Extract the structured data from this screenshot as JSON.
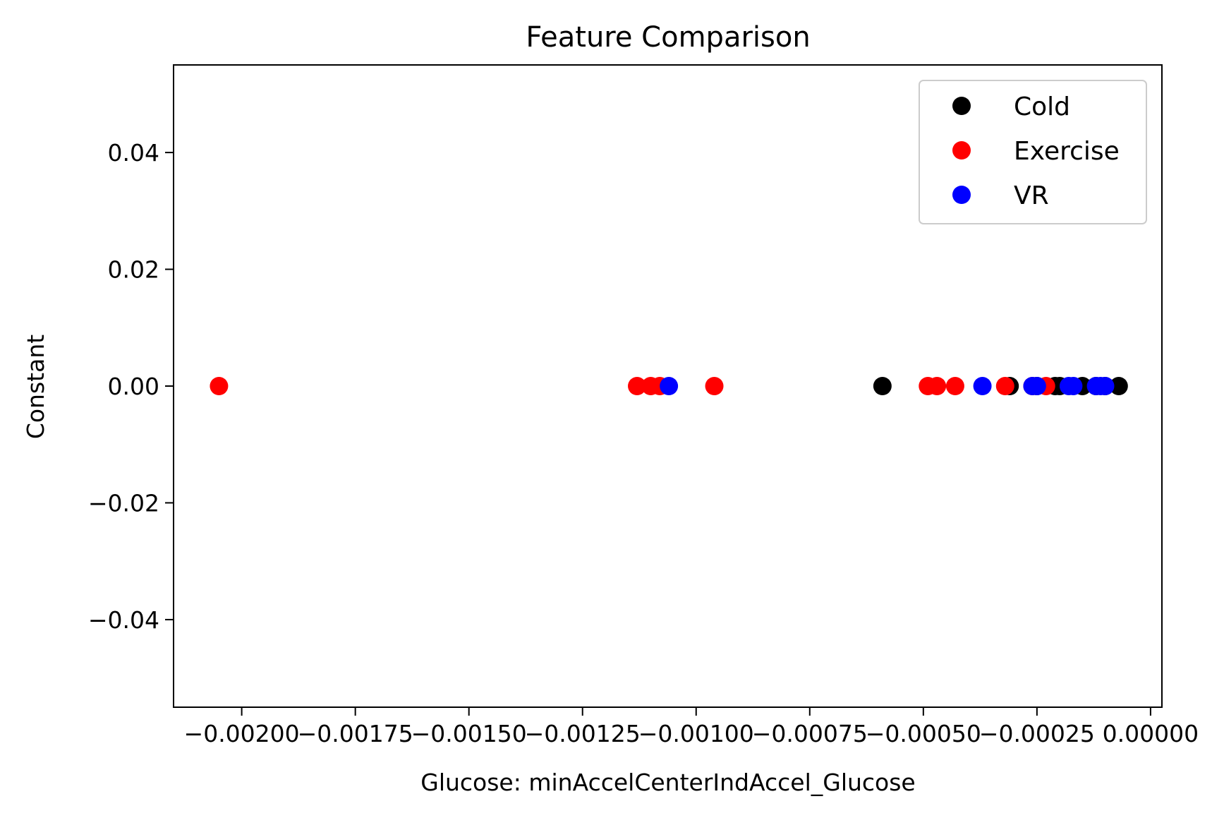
{
  "chart_data": {
    "type": "scatter",
    "title": "Feature Comparison",
    "xlabel": "Glucose: minAccelCenterIndAccel_Glucose",
    "ylabel": "Constant",
    "xlim": [
      -0.00215,
      2.5e-05
    ],
    "ylim": [
      -0.055,
      0.055
    ],
    "xticks": [
      -0.002,
      -0.00175,
      -0.0015,
      -0.00125,
      -0.001,
      -0.00075,
      -0.0005,
      -0.00025,
      0.0
    ],
    "xtick_labels": [
      "−0.00200",
      "−0.00175",
      "−0.00150",
      "−0.00125",
      "−0.00100",
      "−0.00075",
      "−0.00050",
      "−0.00025",
      "0.00000"
    ],
    "yticks": [
      0.04,
      0.02,
      0.0,
      -0.02,
      -0.04
    ],
    "ytick_labels": [
      "0.04",
      "0.02",
      "0.00",
      "−0.02",
      "−0.04"
    ],
    "grid": false,
    "legend_position": "top-right",
    "series": [
      {
        "name": "Cold",
        "color": "#000000",
        "x": [
          -0.00059,
          -0.00031,
          -0.00025,
          -0.00021,
          -0.0002,
          -0.00015,
          -0.00012,
          -0.0001,
          -7e-05
        ],
        "y": [
          0,
          0,
          0,
          0,
          0,
          0,
          0,
          0,
          0
        ]
      },
      {
        "name": "Exercise",
        "color": "#ff0000",
        "x": [
          -0.00205,
          -0.00113,
          -0.0011,
          -0.00108,
          -0.00096,
          -0.00049,
          -0.00047,
          -0.00043,
          -0.00032,
          -0.00026,
          -0.00023
        ],
        "y": [
          0,
          0,
          0,
          0,
          0,
          0,
          0,
          0,
          0,
          0,
          0
        ]
      },
      {
        "name": "VR",
        "color": "#0000ff",
        "x": [
          -0.00106,
          -0.00037,
          -0.00026,
          -0.00025,
          -0.00018,
          -0.00017,
          -0.00012,
          -0.00011,
          -0.0001
        ],
        "y": [
          0,
          0,
          0,
          0,
          0,
          0,
          0,
          0,
          0
        ]
      }
    ]
  }
}
